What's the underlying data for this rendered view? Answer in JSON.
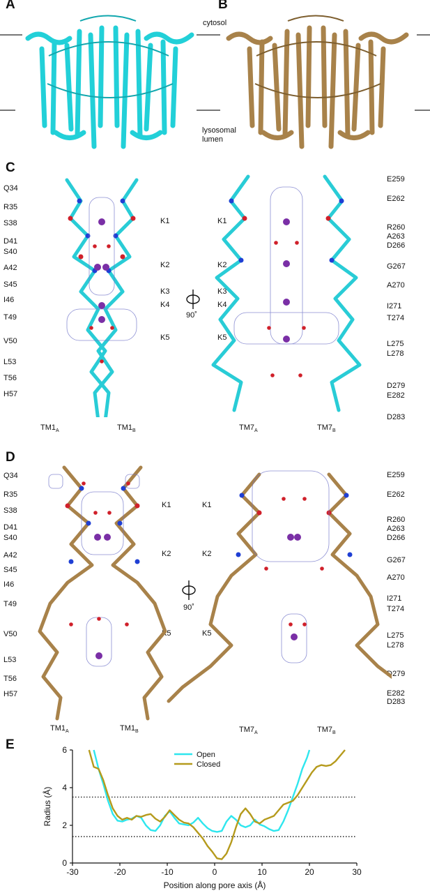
{
  "panels": {
    "A": "A",
    "B": "B",
    "C": "C",
    "D": "D",
    "E": "E"
  },
  "top": {
    "cytosol": "cytosol",
    "lumen_line1": "lysosomal",
    "lumen_line2": "lumen"
  },
  "panel_c": {
    "left_residues": [
      "Q34",
      "R35",
      "S38",
      "D41",
      "S40",
      "A42",
      "S45",
      "I46",
      "T49",
      "V50",
      "L53",
      "T56",
      "H57"
    ],
    "right_residues": [
      "E259",
      "E262",
      "R260",
      "A263",
      "D266",
      "G267",
      "A270",
      "I271",
      "T274",
      "L275",
      "L278",
      "D279",
      "E282",
      "D283"
    ],
    "sites_left": [
      "K1",
      "K2",
      "K3",
      "K4",
      "K5"
    ],
    "sites_right": [
      "K1",
      "K2",
      "K3",
      "K4",
      "K5"
    ],
    "rotation": "90˚",
    "tm_labels": [
      {
        "base": "TM1",
        "sub": "A"
      },
      {
        "base": "TM1",
        "sub": "B"
      },
      {
        "base": "TM7",
        "sub": "A"
      },
      {
        "base": "TM7",
        "sub": "B"
      }
    ]
  },
  "panel_d": {
    "left_residues": [
      "Q34",
      "R35",
      "S38",
      "D41",
      "S40",
      "A42",
      "S45",
      "I46",
      "T49",
      "V50",
      "L53",
      "T56",
      "H57"
    ],
    "right_residues": [
      "E259",
      "E262",
      "R260",
      "A263",
      "D266",
      "G267",
      "A270",
      "I271",
      "T274",
      "L275",
      "L278",
      "D279",
      "E282",
      "D283"
    ],
    "sites_left": [
      "K1",
      "K2",
      "K5"
    ],
    "sites_right": [
      "K1",
      "K2",
      "K5"
    ],
    "rotation": "90˚",
    "tm_labels": [
      {
        "base": "TM1",
        "sub": "A"
      },
      {
        "base": "TM1",
        "sub": "B"
      },
      {
        "base": "TM7",
        "sub": "A"
      },
      {
        "base": "TM7",
        "sub": "B"
      }
    ]
  },
  "colors": {
    "open": "#2ee6ee",
    "closed": "#b59a1c",
    "open_structure": "#22d0d8",
    "closed_structure": "#a8824a",
    "ion": "#7a2fa6",
    "water": "#d0202a",
    "mesh": "#6f73c8"
  },
  "chart_data": {
    "type": "line",
    "xlabel": "Position along pore axis (Å)",
    "ylabel": "Radius (Å)",
    "xlim": [
      -30,
      30
    ],
    "ylim": [
      0,
      6
    ],
    "xticks": [
      "-30",
      "-20",
      "-10",
      "0",
      "10",
      "20",
      "30"
    ],
    "yticks": [
      "0",
      "2",
      "4",
      "6"
    ],
    "reference_lines": [
      3.5,
      1.4
    ],
    "legend_position": "top-center",
    "series": [
      {
        "name": "Open",
        "color": "#2ee6ee",
        "points": [
          [
            -25.5,
            6.0
          ],
          [
            -24.5,
            5.0
          ],
          [
            -23.5,
            4.2
          ],
          [
            -22.5,
            3.3
          ],
          [
            -21.5,
            2.6
          ],
          [
            -20.5,
            2.25
          ],
          [
            -19.5,
            2.2
          ],
          [
            -18.5,
            2.3
          ],
          [
            -17.5,
            2.35
          ],
          [
            -16.5,
            2.5
          ],
          [
            -15.5,
            2.4
          ],
          [
            -14.5,
            2.0
          ],
          [
            -13.5,
            1.75
          ],
          [
            -12.5,
            1.7
          ],
          [
            -11.5,
            2.0
          ],
          [
            -10.5,
            2.5
          ],
          [
            -9.5,
            2.75
          ],
          [
            -8.5,
            2.4
          ],
          [
            -7.5,
            2.1
          ],
          [
            -6.5,
            2.05
          ],
          [
            -5.5,
            2.0
          ],
          [
            -4.5,
            2.15
          ],
          [
            -3.5,
            2.4
          ],
          [
            -2.5,
            2.1
          ],
          [
            -1.5,
            1.85
          ],
          [
            -0.5,
            1.7
          ],
          [
            0.5,
            1.65
          ],
          [
            1.5,
            1.7
          ],
          [
            2.5,
            2.2
          ],
          [
            3.5,
            2.5
          ],
          [
            4.5,
            2.3
          ],
          [
            5.5,
            2.0
          ],
          [
            6.5,
            1.9
          ],
          [
            7.5,
            2.0
          ],
          [
            8.5,
            2.3
          ],
          [
            9.5,
            2.05
          ],
          [
            10.5,
            1.95
          ],
          [
            11.5,
            1.8
          ],
          [
            12.5,
            1.7
          ],
          [
            13.5,
            1.75
          ],
          [
            14.5,
            2.2
          ],
          [
            15.5,
            2.8
          ],
          [
            16.5,
            3.5
          ],
          [
            17.5,
            4.2
          ],
          [
            18.5,
            5.0
          ],
          [
            19.5,
            5.6
          ],
          [
            20,
            6.0
          ]
        ]
      },
      {
        "name": "Closed",
        "color": "#b59a1c",
        "points": [
          [
            -26.5,
            6.0
          ],
          [
            -25.5,
            5.1
          ],
          [
            -24.5,
            5.0
          ],
          [
            -23.5,
            4.4
          ],
          [
            -22.5,
            3.6
          ],
          [
            -21.5,
            2.9
          ],
          [
            -20.5,
            2.5
          ],
          [
            -19.5,
            2.3
          ],
          [
            -18.5,
            2.4
          ],
          [
            -17.5,
            2.3
          ],
          [
            -16.5,
            2.5
          ],
          [
            -15.5,
            2.45
          ],
          [
            -14.5,
            2.55
          ],
          [
            -13.5,
            2.6
          ],
          [
            -12.5,
            2.35
          ],
          [
            -11.5,
            2.2
          ],
          [
            -10.5,
            2.45
          ],
          [
            -9.5,
            2.8
          ],
          [
            -8.5,
            2.55
          ],
          [
            -7.5,
            2.3
          ],
          [
            -6.5,
            2.15
          ],
          [
            -5.5,
            2.1
          ],
          [
            -4.5,
            1.9
          ],
          [
            -3.5,
            1.6
          ],
          [
            -2.5,
            1.3
          ],
          [
            -1.5,
            0.9
          ],
          [
            -0.5,
            0.6
          ],
          [
            0.5,
            0.25
          ],
          [
            1.5,
            0.2
          ],
          [
            2.5,
            0.5
          ],
          [
            3.5,
            1.1
          ],
          [
            4.5,
            1.9
          ],
          [
            5.5,
            2.6
          ],
          [
            6.5,
            2.9
          ],
          [
            7.5,
            2.6
          ],
          [
            8.5,
            2.2
          ],
          [
            9.5,
            2.1
          ],
          [
            10.5,
            2.3
          ],
          [
            11.5,
            2.4
          ],
          [
            12.5,
            2.5
          ],
          [
            13.5,
            2.8
          ],
          [
            14.5,
            3.1
          ],
          [
            15.5,
            3.2
          ],
          [
            16.5,
            3.3
          ],
          [
            17.5,
            3.6
          ],
          [
            18.5,
            4.0
          ],
          [
            19.5,
            4.4
          ],
          [
            20.5,
            4.8
          ],
          [
            21.5,
            5.1
          ],
          [
            22.5,
            5.2
          ],
          [
            23.5,
            5.15
          ],
          [
            24.5,
            5.2
          ],
          [
            25.5,
            5.4
          ],
          [
            26.5,
            5.7
          ],
          [
            27.5,
            6.0
          ]
        ]
      }
    ]
  }
}
